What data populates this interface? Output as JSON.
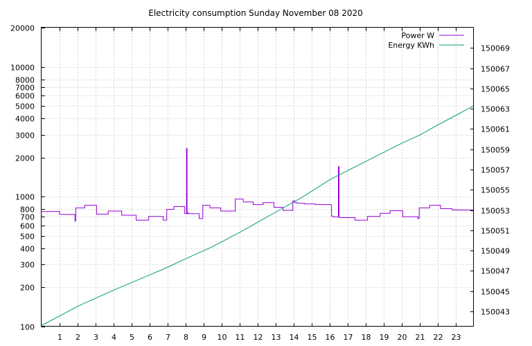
{
  "chart_data": {
    "type": "line",
    "title": "Electricity consumption Sunday November 08 2020",
    "xlabel": "",
    "ylabel": "",
    "y2label": "",
    "grid": true,
    "legend_position": "top-right",
    "colors": {
      "power": "#9400d3",
      "energy": "#009e73",
      "grid": "#a0a0a0",
      "axis": "#000000"
    },
    "xlim": [
      0,
      24
    ],
    "x_ticks": [
      1,
      2,
      3,
      4,
      5,
      6,
      7,
      8,
      9,
      10,
      11,
      12,
      13,
      14,
      15,
      16,
      17,
      18,
      19,
      20,
      21,
      22,
      23
    ],
    "y_scale": "log",
    "ylim": [
      100,
      20000
    ],
    "y_ticks": [
      100,
      200,
      300,
      400,
      500,
      600,
      700,
      800,
      1000,
      2000,
      3000,
      4000,
      5000,
      6000,
      7000,
      8000,
      10000,
      20000
    ],
    "y2lim": [
      150041.5,
      150071
    ],
    "y2_ticks": [
      150043,
      150045,
      150047,
      150049,
      150051,
      150053,
      150055,
      150057,
      150059,
      150061,
      150063,
      150065,
      150067,
      150069
    ],
    "series": [
      {
        "name": "Power W",
        "axis": "y",
        "step": true,
        "x": [
          0,
          1,
          1.85,
          1.9,
          1.93,
          2.4,
          3.05,
          3.7,
          4.45,
          5.25,
          5.95,
          6.75,
          6.95,
          7.35,
          7.95,
          8.05,
          8.08,
          8.12,
          8.15,
          8.75,
          8.95,
          9.35,
          9.95,
          10.75,
          11.2,
          11.75,
          12.3,
          12.9,
          13.4,
          13.95,
          14.05,
          14.2,
          14.6,
          15.2,
          15.85,
          16.1,
          16.18,
          16.48,
          16.52,
          16.57,
          17.4,
          18.1,
          18.8,
          19.35,
          20.05,
          20.9,
          20.97,
          21.55,
          22.15,
          22.8,
          24
        ],
        "values": [
          770,
          730,
          650,
          820,
          820,
          860,
          735,
          775,
          720,
          660,
          705,
          660,
          800,
          840,
          740,
          2350,
          740,
          750,
          740,
          680,
          860,
          820,
          775,
          960,
          910,
          870,
          900,
          830,
          785,
          930,
          900,
          890,
          880,
          870,
          870,
          710,
          700,
          1700,
          690,
          690,
          660,
          705,
          745,
          780,
          700,
          680,
          820,
          860,
          810,
          790,
          790
        ]
      },
      {
        "name": "Energy KWh",
        "axis": "y2",
        "step": false,
        "x": [
          0,
          2,
          4,
          6,
          6.8,
          8,
          9.5,
          11,
          13,
          14.5,
          16,
          18,
          20,
          21,
          22,
          24
        ],
        "values": [
          150041.6,
          150043.5,
          150045.1,
          150046.6,
          150047.2,
          150048.2,
          150049.4,
          150050.8,
          150052.8,
          150054.3,
          150056.0,
          150057.8,
          150059.6,
          150060.4,
          150061.4,
          150063.3
        ]
      }
    ]
  }
}
